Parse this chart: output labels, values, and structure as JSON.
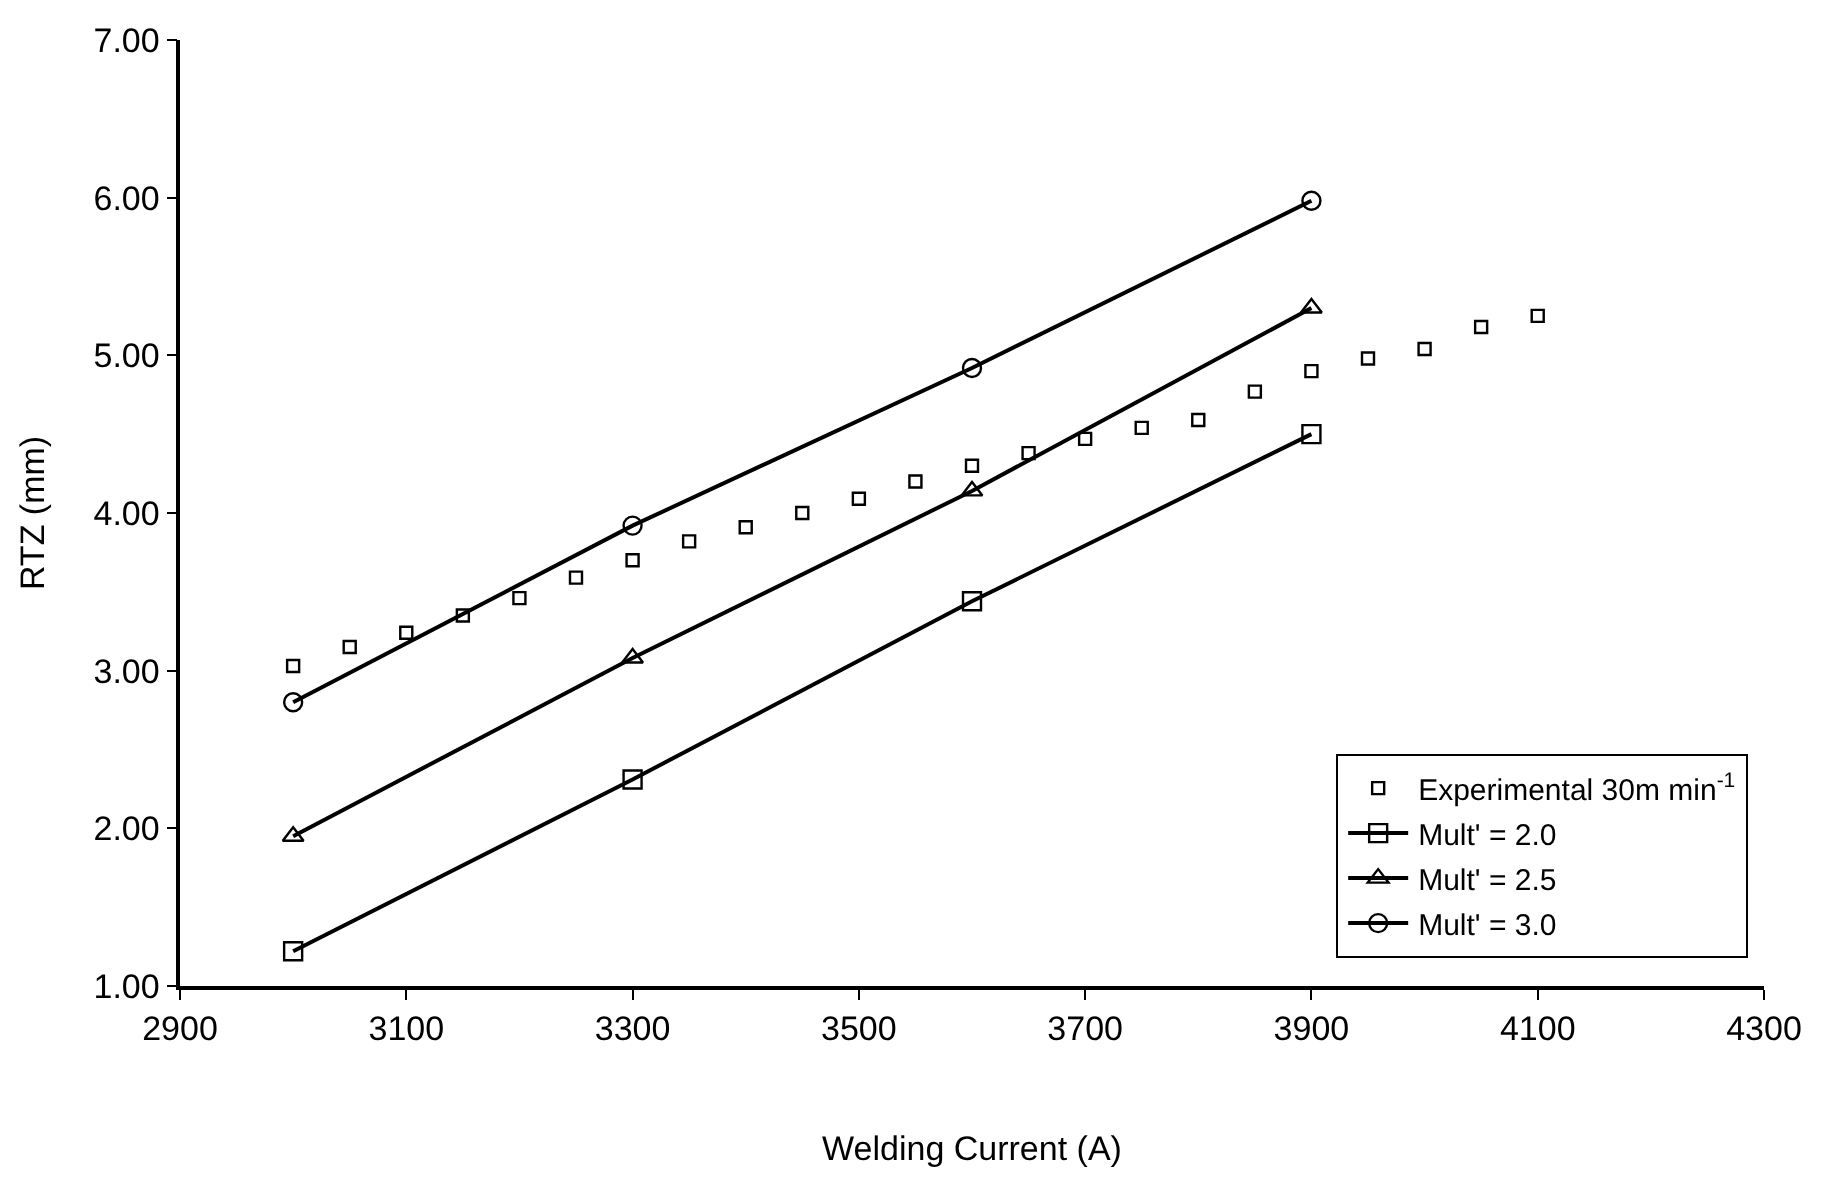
{
  "chart_data": {
    "type": "line",
    "xlabel": "Welding Current (A)",
    "ylabel": "RTZ (mm)",
    "xlim": [
      2900,
      4300
    ],
    "xticks": [
      2900,
      3100,
      3300,
      3500,
      3700,
      3900,
      4100,
      4300
    ],
    "ylim": [
      1,
      7
    ],
    "yticks": [
      {
        "value": 1,
        "label": "1.00"
      },
      {
        "value": 2,
        "label": "2.00"
      },
      {
        "value": 3,
        "label": "3.00"
      },
      {
        "value": 4,
        "label": "4.00"
      },
      {
        "value": 5,
        "label": "5.00"
      },
      {
        "value": 6,
        "label": "6.00"
      },
      {
        "value": 7,
        "label": "7.00"
      }
    ],
    "grid": false,
    "legend": "bottom right",
    "series": [
      {
        "name": "Experimental 30m min$^{-1}$",
        "type": "scatter",
        "marker": "square",
        "color": "#000000",
        "x": [
          3000,
          3050,
          3100,
          3150,
          3200,
          3250,
          3300,
          3350,
          3400,
          3450,
          3500,
          3550,
          3600,
          3650,
          3700,
          3750,
          3800,
          3850,
          3900,
          3950,
          4000,
          4050,
          4100
        ],
        "values": [
          3.03,
          3.15,
          3.24,
          3.35,
          3.46,
          3.59,
          3.7,
          3.82,
          3.91,
          4.0,
          4.09,
          4.2,
          4.3,
          4.38,
          4.47,
          4.54,
          4.59,
          4.77,
          4.9,
          4.98,
          5.04,
          5.18,
          5.25
        ]
      },
      {
        "name": "Mult' = 2.0",
        "marker": "square",
        "color": "#000000",
        "x": [
          3000,
          3300,
          3600,
          3900
        ],
        "values": [
          1.22,
          2.31,
          3.44,
          4.5
        ]
      },
      {
        "name": "Mult' = 2.5",
        "marker": "triangle",
        "color": "#000000",
        "x": [
          3000,
          3300,
          3600,
          3900
        ],
        "values": [
          1.95,
          3.08,
          4.14,
          5.3
        ]
      },
      {
        "name": "Mult' = 3.0",
        "marker": "circle",
        "color": "#000000",
        "x": [
          3000,
          3300,
          3600,
          3900
        ],
        "values": [
          2.8,
          3.92,
          4.92,
          5.98
        ]
      }
    ]
  }
}
